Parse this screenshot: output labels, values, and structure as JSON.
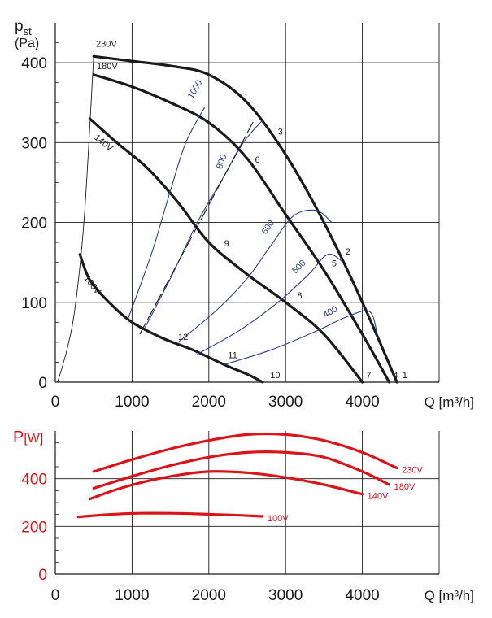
{
  "chart_data": [
    {
      "type": "line",
      "title": "",
      "ylabel_main": "p",
      "ylabel_sub": "st",
      "ylabel_unit": "(Pa)",
      "xlabel": "Q [m³/h]",
      "xlim": [
        0,
        5000
      ],
      "ylim": [
        0,
        450
      ],
      "xticks": [
        "0",
        "1000",
        "2000",
        "3000",
        "4000"
      ],
      "xtick_values": [
        0,
        1000,
        2000,
        3000,
        4000
      ],
      "yticks": [
        "0",
        "100",
        "200",
        "300",
        "400"
      ],
      "ytick_values": [
        0,
        100,
        200,
        300,
        400
      ],
      "colors": {
        "fan_curve": "#1a1a1a",
        "rpm_curve": "#2a3f8f",
        "grid": "#1a1a1a"
      },
      "series": [
        {
          "name": "230V",
          "kind": "fan",
          "x": [
            500,
            1000,
            1500,
            2000,
            2500,
            3000,
            3500,
            4000,
            4450
          ],
          "y": [
            408,
            402,
            396,
            385,
            350,
            285,
            200,
            100,
            0
          ]
        },
        {
          "name": "180V",
          "kind": "fan",
          "x": [
            500,
            1000,
            1500,
            2000,
            2500,
            3000,
            3500,
            4000,
            4350
          ],
          "y": [
            385,
            370,
            350,
            325,
            280,
            210,
            140,
            60,
            0
          ]
        },
        {
          "name": "140V",
          "kind": "fan",
          "x": [
            450,
            800,
            1200,
            1600,
            2000,
            2500,
            3000,
            3500,
            4000
          ],
          "y": [
            330,
            300,
            268,
            225,
            175,
            135,
            100,
            60,
            0
          ]
        },
        {
          "name": "100V",
          "kind": "fan",
          "x": [
            320,
            450,
            700,
            1000,
            1400,
            1800,
            2200,
            2500,
            2700
          ],
          "y": [
            160,
            128,
            100,
            75,
            55,
            40,
            22,
            10,
            0
          ]
        },
        {
          "name": "1000",
          "kind": "rpm",
          "x": [
            950,
            1250,
            1500,
            1700,
            1950
          ],
          "y": [
            80,
            160,
            240,
            300,
            345
          ]
        },
        {
          "name": "800",
          "kind": "rpm",
          "x": [
            1150,
            1500,
            1850,
            2150,
            2450,
            2700
          ],
          "y": [
            65,
            130,
            200,
            250,
            300,
            328
          ]
        },
        {
          "name": "600",
          "kind": "rpm",
          "x": [
            1600,
            2100,
            2500,
            2800,
            3100,
            3400,
            3600
          ],
          "y": [
            50,
            90,
            130,
            170,
            208,
            215,
            200
          ]
        },
        {
          "name": "500",
          "kind": "rpm",
          "x": [
            1850,
            2400,
            2900,
            3300,
            3550,
            3750
          ],
          "y": [
            35,
            65,
            100,
            135,
            160,
            150
          ]
        },
        {
          "name": "400",
          "kind": "rpm",
          "x": [
            2200,
            2800,
            3400,
            3800,
            4100,
            4200
          ],
          "y": [
            22,
            40,
            64,
            82,
            88,
            55
          ]
        },
        {
          "name": "Diag",
          "kind": "dash",
          "x": [
            1100,
            2600
          ],
          "y": [
            60,
            330
          ]
        },
        {
          "name": "Limit",
          "kind": "thin",
          "x": [
            30,
            150,
            260,
            380,
            500
          ],
          "y": [
            0,
            40,
            95,
            210,
            408
          ]
        }
      ],
      "point_labels": [
        {
          "text": "1",
          "x": 4520,
          "y": 5
        },
        {
          "text": "2",
          "x": 3780,
          "y": 160
        },
        {
          "text": "3",
          "x": 2900,
          "y": 310
        },
        {
          "text": "4",
          "x": 4400,
          "y": 5
        },
        {
          "text": "5",
          "x": 3600,
          "y": 145
        },
        {
          "text": "6",
          "x": 2600,
          "y": 275
        },
        {
          "text": "7",
          "x": 4050,
          "y": 5
        },
        {
          "text": "8",
          "x": 3150,
          "y": 105
        },
        {
          "text": "9",
          "x": 2200,
          "y": 170
        },
        {
          "text": "10",
          "x": 2800,
          "y": 5
        },
        {
          "text": "11",
          "x": 2250,
          "y": 30
        },
        {
          "text": "12",
          "x": 1600,
          "y": 53
        }
      ],
      "volt_labels": [
        {
          "text": "230V",
          "x": 530,
          "y": 420
        },
        {
          "text": "180V",
          "x": 540,
          "y": 392
        },
        {
          "text": "140V",
          "x": 500,
          "y": 305,
          "rot": 38
        },
        {
          "text": "100V",
          "x": 370,
          "y": 130,
          "rot": 52
        }
      ],
      "rpm_labels": [
        {
          "text": "1000",
          "x": 1850,
          "y": 365,
          "rot": -60
        },
        {
          "text": "800",
          "x": 2200,
          "y": 275,
          "rot": -70
        },
        {
          "text": "600",
          "x": 2800,
          "y": 192,
          "rot": -55
        },
        {
          "text": "500",
          "x": 3200,
          "y": 142,
          "rot": -45
        },
        {
          "text": "400",
          "x": 3600,
          "y": 85,
          "rot": -30
        }
      ]
    },
    {
      "type": "line",
      "title": "",
      "ylabel": "P",
      "ylabel_unit": "[W]",
      "xlabel": "Q [m³/h]",
      "xlim": [
        0,
        5000
      ],
      "ylim": [
        0,
        600
      ],
      "xticks": [
        "0",
        "1000",
        "2000",
        "3000",
        "4000"
      ],
      "xtick_values": [
        0,
        1000,
        2000,
        3000,
        4000
      ],
      "yticks": [
        "0",
        "200",
        "400"
      ],
      "ytick_values": [
        0,
        200,
        400
      ],
      "colors": {
        "series": "#d9141b",
        "grid": "#1a1a1a"
      },
      "series": [
        {
          "name": "230V",
          "x": [
            500,
            1000,
            1500,
            2000,
            2500,
            3000,
            3500,
            4000,
            4450
          ],
          "y": [
            430,
            480,
            525,
            560,
            585,
            585,
            560,
            510,
            445
          ]
        },
        {
          "name": "180V",
          "x": [
            500,
            1000,
            1500,
            2000,
            2500,
            3000,
            3500,
            4000,
            4350
          ],
          "y": [
            360,
            410,
            455,
            490,
            510,
            510,
            490,
            430,
            375
          ]
        },
        {
          "name": "140V",
          "x": [
            450,
            800,
            1200,
            1600,
            2000,
            2500,
            3000,
            3500,
            4000
          ],
          "y": [
            315,
            355,
            390,
            415,
            430,
            425,
            405,
            375,
            335
          ]
        },
        {
          "name": "100V",
          "x": [
            300,
            700,
            1100,
            1500,
            1900,
            2300,
            2700
          ],
          "y": [
            240,
            250,
            255,
            255,
            252,
            248,
            242
          ]
        }
      ]
    }
  ]
}
